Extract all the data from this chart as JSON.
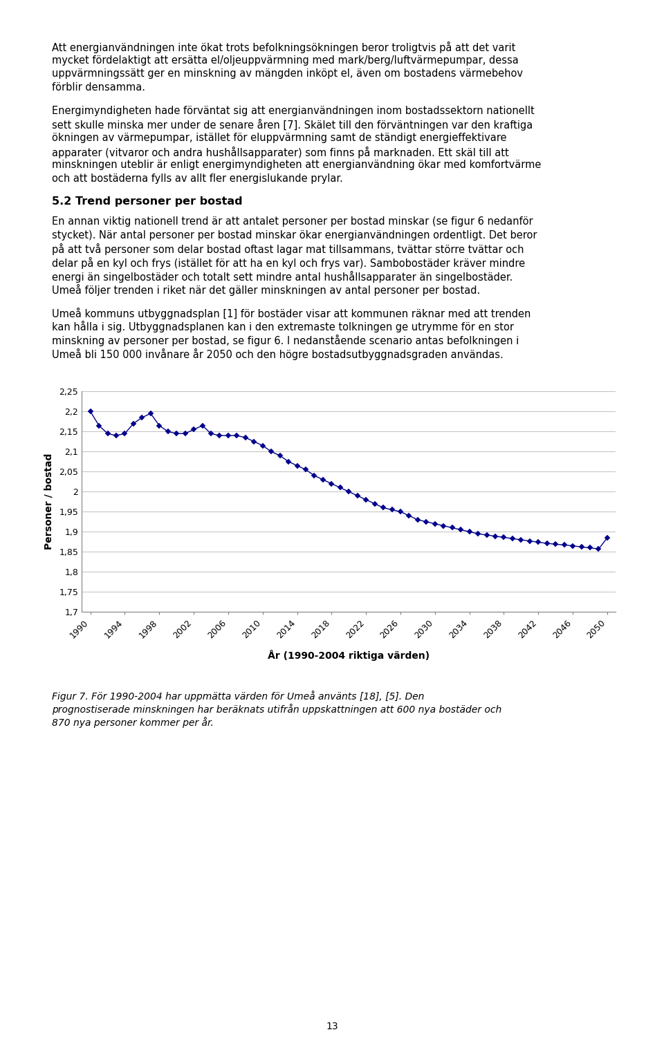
{
  "years": [
    1990,
    1991,
    1992,
    1993,
    1994,
    1995,
    1996,
    1997,
    1998,
    1999,
    2000,
    2001,
    2002,
    2003,
    2004,
    2005,
    2006,
    2007,
    2008,
    2009,
    2010,
    2011,
    2012,
    2013,
    2014,
    2015,
    2016,
    2017,
    2018,
    2019,
    2020,
    2021,
    2022,
    2023,
    2024,
    2025,
    2026,
    2027,
    2028,
    2029,
    2030,
    2031,
    2032,
    2033,
    2034,
    2035,
    2036,
    2037,
    2038,
    2039,
    2040,
    2041,
    2042,
    2043,
    2044,
    2045,
    2046,
    2047,
    2048,
    2049,
    2050
  ],
  "values": [
    2.2,
    2.165,
    2.145,
    2.14,
    2.145,
    2.17,
    2.185,
    2.195,
    2.165,
    2.15,
    2.145,
    2.145,
    2.155,
    2.165,
    2.145,
    2.14,
    2.14,
    2.14,
    2.135,
    2.125,
    2.115,
    2.1,
    2.09,
    2.075,
    2.065,
    2.055,
    2.04,
    2.03,
    2.02,
    2.01,
    2.0,
    1.99,
    1.98,
    1.97,
    1.96,
    1.955,
    1.95,
    1.94,
    1.93,
    1.925,
    1.92,
    1.915,
    1.91,
    1.905,
    1.9,
    1.895,
    1.892,
    1.889,
    1.886,
    1.883,
    1.88,
    1.877,
    1.874,
    1.871,
    1.869,
    1.867,
    1.865,
    1.862,
    1.86,
    1.857,
    1.885
  ],
  "line_color": "#00008B",
  "marker_color": "#00008B",
  "marker_style": "D",
  "marker_size": 4,
  "ylabel": "Personer / bostad",
  "xlabel": "År (1990-2004 riktiga värden)",
  "ylim_min": 1.7,
  "ylim_max": 2.25,
  "yticks": [
    1.7,
    1.75,
    1.8,
    1.85,
    1.9,
    1.95,
    2.0,
    2.05,
    2.1,
    2.15,
    2.2,
    2.25
  ],
  "xticks": [
    1990,
    1994,
    1998,
    2002,
    2006,
    2010,
    2014,
    2018,
    2022,
    2026,
    2030,
    2034,
    2038,
    2042,
    2046,
    2050
  ],
  "grid_color": "#C0C0C0",
  "background_color": "#FFFFFF",
  "text_color": "#000000",
  "page_number": "13",
  "body_fontsize": 10.5,
  "section_fontsize": 11.5,
  "caption_fontsize": 10.0
}
